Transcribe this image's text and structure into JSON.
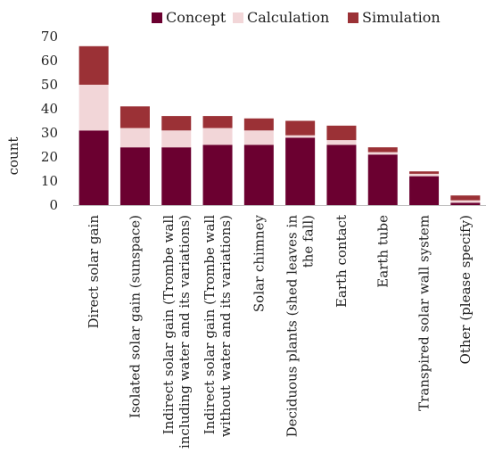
{
  "chart_data": {
    "type": "bar",
    "stacked": true,
    "title": "",
    "xlabel": "",
    "ylabel": "count",
    "ylim": [
      0,
      70
    ],
    "yticks": [
      0,
      10,
      20,
      30,
      40,
      50,
      60,
      70
    ],
    "grid": false,
    "legend_position": "top",
    "categories": [
      "Direct solar gain",
      "Isolated solar gain (sunspace)",
      "Indirect solar gain (Trombe wall including water and its variations)",
      "Indirect solar gain (Trombe wall without water and its variations)",
      "Solar chimney",
      "Deciduous plants (shed leaves in the fall)",
      "Earth contact",
      "Earth tube",
      "Transpired solar wall system",
      "Other (please specify)"
    ],
    "category_lines": [
      [
        "Direct solar gain"
      ],
      [
        "Isolated solar gain (sunspace)"
      ],
      [
        "Indirect solar gain (Trombe wall",
        "including water and its variations)"
      ],
      [
        "Indirect solar gain (Trombe wall",
        "without water and its variations)"
      ],
      [
        "Solar chimney"
      ],
      [
        "Deciduous plants (shed leaves in",
        "the fall)"
      ],
      [
        "Earth contact"
      ],
      [
        "Earth tube"
      ],
      [
        "Transpired solar wall system"
      ],
      [
        "Other (please specify)"
      ]
    ],
    "series": [
      {
        "name": "Concept",
        "color": "#6b0030",
        "values": [
          31,
          24,
          24,
          25,
          25,
          28,
          25,
          21,
          12,
          1
        ]
      },
      {
        "name": "Calculation",
        "color": "#f2d6d8",
        "values": [
          19,
          8,
          7,
          7,
          6,
          1,
          2,
          1,
          1,
          1
        ]
      },
      {
        "name": "Simulation",
        "color": "#9b3136",
        "values": [
          16,
          9,
          6,
          5,
          5,
          6,
          6,
          2,
          1,
          2
        ]
      }
    ]
  }
}
